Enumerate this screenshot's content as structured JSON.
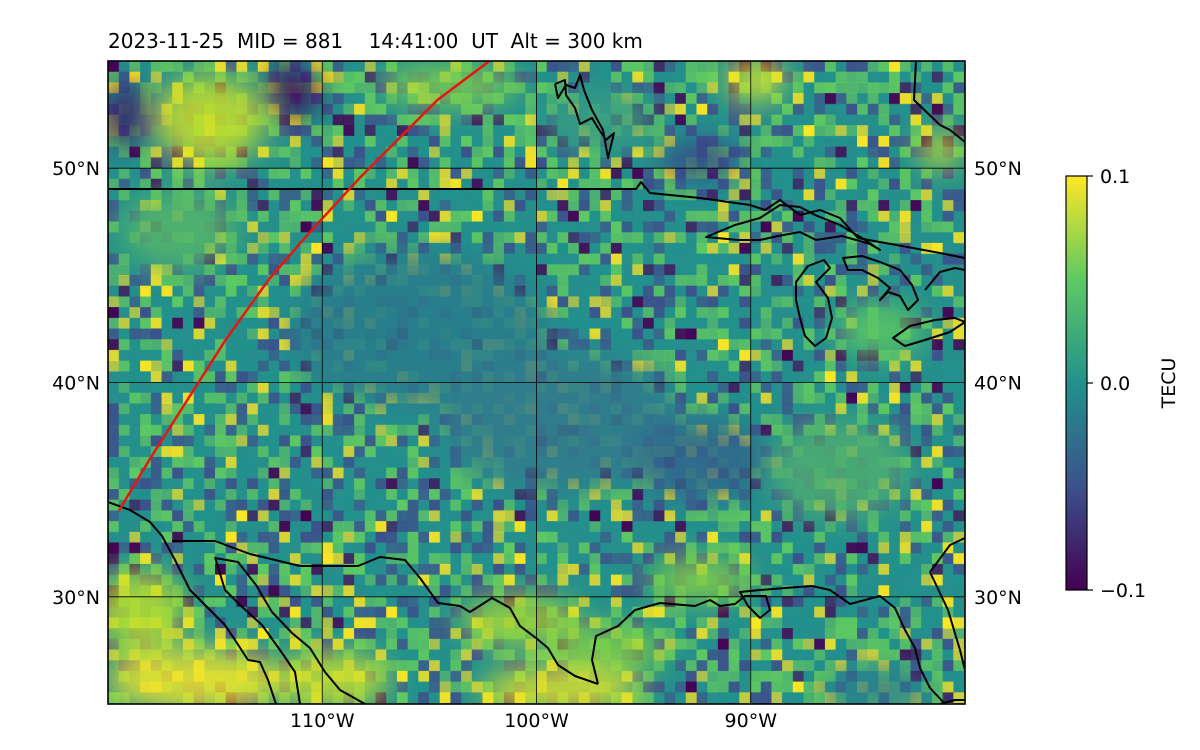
{
  "title": "2023-11-25  MID = 881    14:41:00  UT  Alt = 300 km",
  "map": {
    "lon_range": [
      -120,
      -80
    ],
    "lat_range": [
      25,
      55
    ],
    "lat_ticks": [
      {
        "value": 50,
        "label": "50°N"
      },
      {
        "value": 40,
        "label": "40°N"
      },
      {
        "value": 30,
        "label": "30°N"
      }
    ],
    "lon_ticks": [
      {
        "value": -110,
        "label": "110°W"
      },
      {
        "value": -100,
        "label": "100°W"
      },
      {
        "value": -90,
        "label": "90°W"
      }
    ],
    "track_color": "#e8160c",
    "track": [
      [
        -119.5,
        34
      ],
      [
        -118,
        36.5
      ],
      [
        -114.5,
        42
      ],
      [
        -112.5,
        44.8
      ],
      [
        -110.5,
        47.1
      ],
      [
        -108.2,
        49.6
      ],
      [
        -106,
        51.8
      ],
      [
        -104.6,
        53.2
      ],
      [
        -102.2,
        55
      ]
    ]
  },
  "colorbar": {
    "label": "TECU",
    "ticks": [
      "0.1",
      "0.0",
      "−0.1"
    ],
    "min": -0.1,
    "max": 0.1,
    "colormap": "viridis",
    "colors": [
      "#440154",
      "#3b528b",
      "#21918c",
      "#5ec962",
      "#fde725"
    ]
  }
}
